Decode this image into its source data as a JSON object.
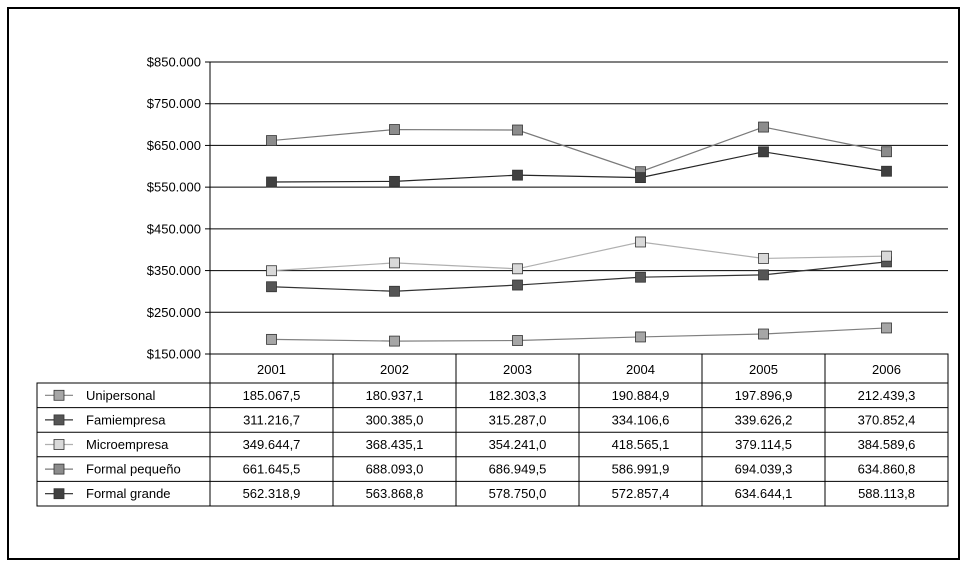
{
  "chart_data": {
    "type": "line",
    "title": "",
    "xlabel": "",
    "ylabel": "",
    "ylim": [
      150000,
      850000
    ],
    "y_ticks": [
      150000,
      250000,
      350000,
      450000,
      550000,
      650000,
      750000,
      850000
    ],
    "y_tick_labels": [
      "$150.000",
      "$250.000",
      "$350.000",
      "$450.000",
      "$550.000",
      "$650.000",
      "$750.000",
      "$850.000"
    ],
    "grid": true,
    "legend": "table-below",
    "categories": [
      "2001",
      "2002",
      "2003",
      "2004",
      "2005",
      "2006"
    ],
    "series": [
      {
        "name": "Unipersonal",
        "color": "#a6a6a6",
        "line_color": "#808080",
        "values": [
          185067.5,
          180937.1,
          182303.3,
          190884.9,
          197896.9,
          212439.3
        ],
        "labels": [
          "185.067,5",
          "180.937,1",
          "182.303,3",
          "190.884,9",
          "197.896,9",
          "212.439,3"
        ]
      },
      {
        "name": "Famiempresa",
        "color": "#555555",
        "line_color": "#333333",
        "values": [
          311216.7,
          300385.0,
          315287.0,
          334106.6,
          339626.2,
          370852.4
        ],
        "labels": [
          "311.216,7",
          "300.385,0",
          "315.287,0",
          "334.106,6",
          "339.626,2",
          "370.852,4"
        ]
      },
      {
        "name": "Microempresa",
        "color": "#d9d9d9",
        "line_color": "#b0b0b0",
        "values": [
          349644.7,
          368435.1,
          354241.0,
          418565.1,
          379114.5,
          384589.6
        ],
        "labels": [
          "349.644,7",
          "368.435,1",
          "354.241,0",
          "418.565,1",
          "379.114,5",
          "384.589,6"
        ]
      },
      {
        "name": "Formal pequeño",
        "color": "#8c8c8c",
        "line_color": "#7a7a7a",
        "values": [
          661645.5,
          688093.0,
          686949.5,
          586991.9,
          694039.3,
          634860.8
        ],
        "labels": [
          "661.645,5",
          "688.093,0",
          "686.949,5",
          "586.991,9",
          "694.039,3",
          "634.860,8"
        ]
      },
      {
        "name": "Formal grande",
        "color": "#404040",
        "line_color": "#262626",
        "values": [
          562318.9,
          563868.8,
          578750.0,
          572857.4,
          634644.1,
          588113.8
        ],
        "labels": [
          "562.318,9",
          "563.868,8",
          "578.750,0",
          "572.857,4",
          "634.644,1",
          "588.113,8"
        ]
      }
    ]
  }
}
